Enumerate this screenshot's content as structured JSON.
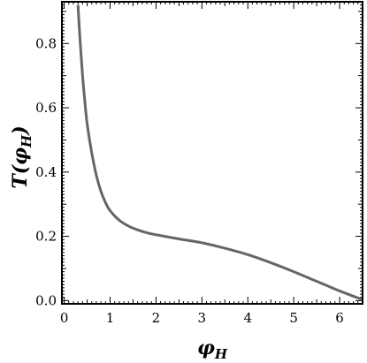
{
  "chart_data": {
    "type": "line",
    "title": "",
    "xlabel": {
      "symbol": "φ",
      "subscript": "H"
    },
    "ylabel": {
      "prefix": "T(",
      "symbol": "φ",
      "subscript": "H",
      "suffix": ")"
    },
    "xlim": [
      -0.05,
      6.5
    ],
    "ylim": [
      -0.01,
      0.93
    ],
    "x_ticks": [
      0,
      1,
      2,
      3,
      4,
      5,
      6
    ],
    "y_ticks": [
      0.0,
      0.2,
      0.4,
      0.6,
      0.8
    ],
    "x_tick_labels": [
      "0",
      "1",
      "2",
      "3",
      "4",
      "5",
      "6"
    ],
    "y_tick_labels": [
      "0.0",
      "0.2",
      "0.4",
      "0.6",
      "0.8"
    ],
    "grid": false,
    "series": [
      {
        "color": "#666666",
        "points": [
          [
            0.3,
            0.92
          ],
          [
            0.35,
            0.8
          ],
          [
            0.4,
            0.7
          ],
          [
            0.45,
            0.62
          ],
          [
            0.5,
            0.55
          ],
          [
            0.6,
            0.46
          ],
          [
            0.7,
            0.39
          ],
          [
            0.8,
            0.34
          ],
          [
            0.9,
            0.305
          ],
          [
            1.0,
            0.28
          ],
          [
            1.2,
            0.25
          ],
          [
            1.4,
            0.232
          ],
          [
            1.6,
            0.22
          ],
          [
            1.8,
            0.211
          ],
          [
            2.0,
            0.205
          ],
          [
            2.5,
            0.192
          ],
          [
            3.0,
            0.18
          ],
          [
            3.5,
            0.163
          ],
          [
            4.0,
            0.143
          ],
          [
            4.5,
            0.118
          ],
          [
            5.0,
            0.09
          ],
          [
            5.5,
            0.06
          ],
          [
            6.0,
            0.03
          ],
          [
            6.5,
            0.003
          ]
        ]
      }
    ]
  }
}
